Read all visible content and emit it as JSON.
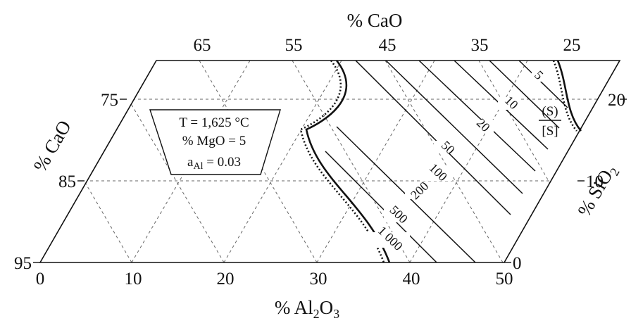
{
  "axes": {
    "top_title": "% CaO",
    "left_title": "% CaO",
    "right_title_main": "% SiO",
    "right_title_sub": "2",
    "bottom_title_a": "% Al",
    "bottom_title_sub1": "2",
    "bottom_title_b": "O",
    "bottom_title_sub2": "3"
  },
  "ticks": {
    "top": [
      "65",
      "55",
      "45",
      "35",
      "25"
    ],
    "left": [
      "75",
      "85",
      "95"
    ],
    "right": [
      "20",
      "10",
      "0"
    ],
    "bottom": [
      "0",
      "10",
      "20",
      "30",
      "40",
      "50"
    ]
  },
  "conditions": {
    "temperature": "T = 1,625 °C",
    "mgo": "% MgO = 5",
    "activity_main": "a",
    "activity_sub": "Al",
    "activity_value": " = 0.03"
  },
  "ratio": {
    "numerator": "(S)",
    "denominator": "[S]"
  },
  "isolines": [
    "5",
    "10",
    "20",
    "50",
    "100",
    "200",
    "500",
    "1 000"
  ],
  "colors": {
    "line": "#111111",
    "grid": "#555555",
    "background": "#ffffff"
  }
}
